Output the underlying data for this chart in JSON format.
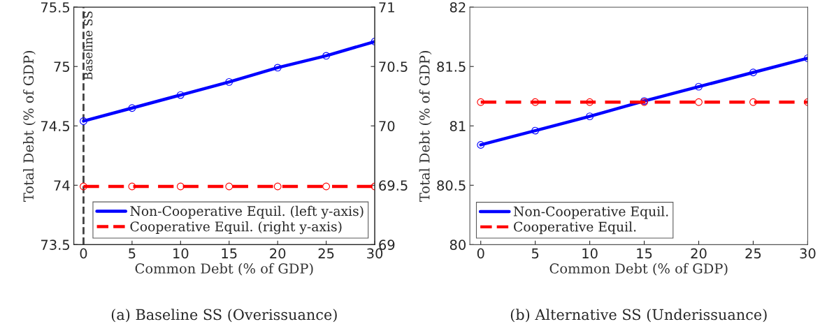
{
  "chart_data": [
    {
      "type": "line",
      "xlabel": "Common Debt (% of GDP)",
      "ylabel": "Total Debt (% of GDP)",
      "annotations": [
        "(a) Baseline SS (Overissuance)"
      ],
      "x": [
        0,
        5,
        10,
        15,
        20,
        25,
        30
      ],
      "series": [
        {
          "name": "Non-Cooperative Equil. (left y-axis)",
          "color": "#0000ff",
          "values": [
            74.54,
            74.65,
            74.76,
            74.87,
            74.99,
            75.09,
            75.21
          ],
          "marker": "circle",
          "line_style": "solid"
        },
        {
          "name": "Cooperative Equil. (right y-axis)",
          "color": "#ff0000",
          "values": [
            69.49,
            69.49,
            69.49,
            69.49,
            69.49,
            69.49,
            69.49
          ],
          "marker": "circle",
          "line_style": "dashed",
          "axis": "y2"
        }
      ],
      "xlim": [
        -1,
        30
      ],
      "xticks": [
        0,
        5,
        10,
        15,
        20,
        25,
        30
      ],
      "ylim": [
        73.5,
        75.5
      ],
      "yticks": [
        73.5,
        74,
        74.5,
        75,
        75.5
      ],
      "y2lim": [
        69,
        71
      ],
      "y2ticks": [
        69,
        69.5,
        70,
        70.5,
        71
      ],
      "ref_lines": [
        {
          "axis": "x",
          "value": 0,
          "label": "Baseline SS",
          "color": "#404040",
          "line_style": "dashed"
        }
      ],
      "grid": false,
      "legend": "bottom right"
    },
    {
      "type": "line",
      "xlabel": "Common Debt (% of GDP)",
      "ylabel": "Total Debt (% of GDP)",
      "annotations": [
        "(b) Alternative SS (Underissuance)"
      ],
      "x": [
        0,
        5,
        10,
        15,
        20,
        25,
        30
      ],
      "series": [
        {
          "name": "Non-Cooperative Equil.",
          "color": "#0000ff",
          "values": [
            80.84,
            80.96,
            81.08,
            81.21,
            81.33,
            81.45,
            81.57
          ],
          "marker": "circle",
          "line_style": "solid"
        },
        {
          "name": "Cooperative Equil.",
          "color": "#ff0000",
          "values": [
            81.2,
            81.2,
            81.2,
            81.2,
            81.2,
            81.2,
            81.2
          ],
          "marker": "circle",
          "line_style": "dashed"
        }
      ],
      "xlim": [
        -1,
        30
      ],
      "xticks": [
        0,
        5,
        10,
        15,
        20,
        25,
        30
      ],
      "ylim": [
        80,
        82
      ],
      "yticks": [
        80,
        80.5,
        81,
        81.5,
        82
      ],
      "grid": false,
      "legend": "bottom left"
    }
  ]
}
